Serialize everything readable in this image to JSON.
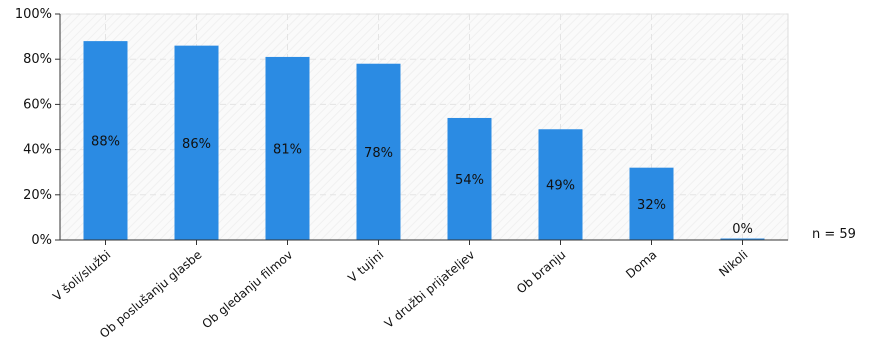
{
  "chart_data": {
    "type": "bar",
    "categories": [
      "V šoli/službi",
      "Ob poslušanju glasbe",
      "Ob gledanju filmov",
      "V tujini",
      "V družbi prijateljev",
      "Ob branju",
      "Doma",
      "Nikoli"
    ],
    "values": [
      88,
      86,
      81,
      78,
      54,
      49,
      32,
      0
    ],
    "value_labels": [
      "88%",
      "86%",
      "81%",
      "78%",
      "54%",
      "49%",
      "32%",
      "0%"
    ],
    "title": "",
    "xlabel": "",
    "ylabel": "",
    "ylim": [
      0,
      100
    ],
    "y_ticks": [
      0,
      20,
      40,
      60,
      80,
      100
    ],
    "y_tick_labels": [
      "0%",
      "20%",
      "40%",
      "60%",
      "80%",
      "100%"
    ],
    "grid": true,
    "bar_color": "#2b8be3",
    "legend": "none"
  },
  "sample_size_label": "n = 59"
}
